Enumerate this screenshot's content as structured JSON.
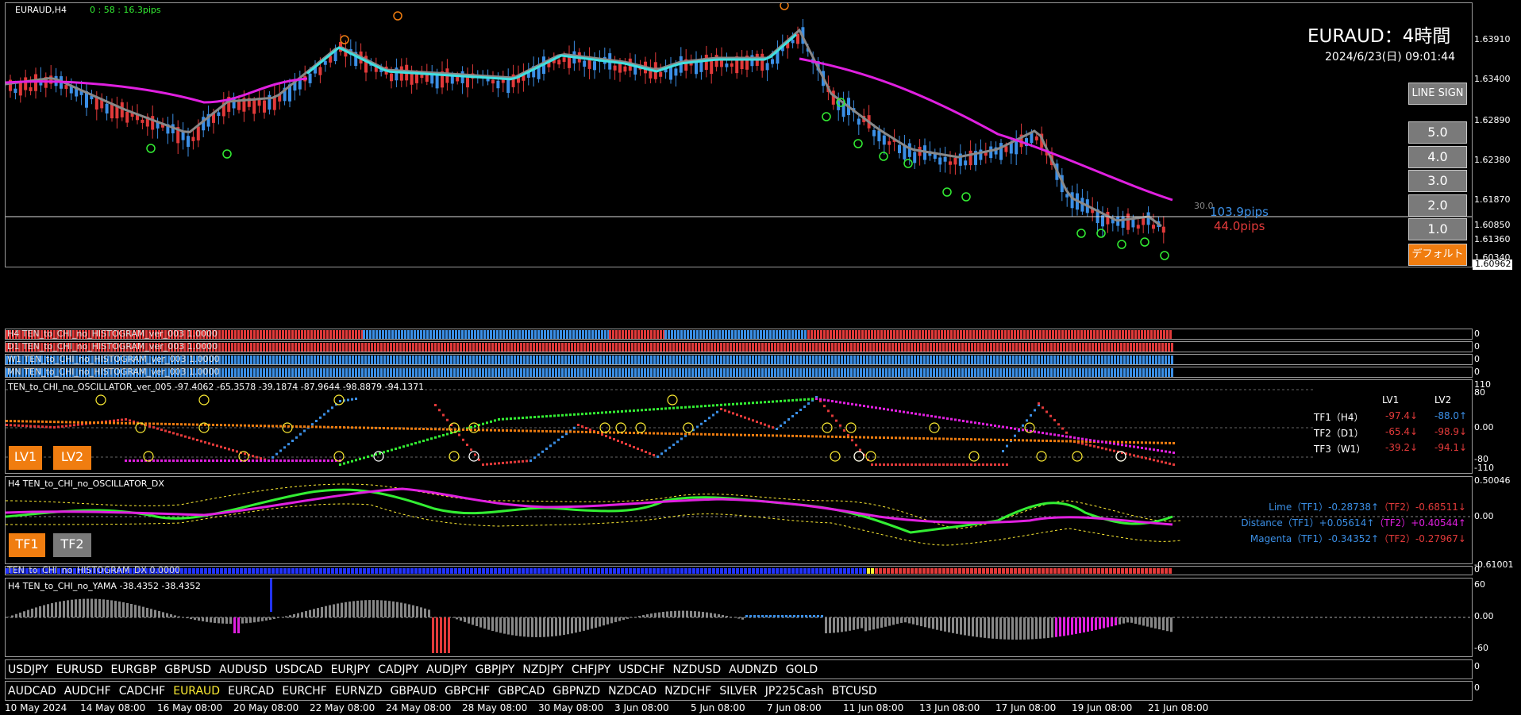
{
  "colors": {
    "bull": "#3b8fe6",
    "bear": "#e23a3a",
    "magenta": "#e020e0",
    "cyan": "#40e0e0",
    "orange": "#f07d10",
    "lime": "#33ee33",
    "yellow": "#ffee33"
  },
  "main": {
    "symbol_label": "EURAUD,H4",
    "timer": "0 : 58 : 16.3pips",
    "title": "EURAUD：4時間",
    "datetime": "2024/6/23(日) 09:01:44",
    "price_current": "1.60962",
    "price_ticks": [
      "1.63910",
      "1.63400",
      "1.62890",
      "1.62380",
      "1.61870",
      "1.61360",
      "1.60850",
      "1.60340"
    ],
    "pips_up": "103.9pips",
    "pips_down": "44.0pips",
    "level_label": "30.0",
    "buttons": {
      "line_sign": "LINE SIGN",
      "b5": "5.0",
      "b4": "4.0",
      "b3": "3.0",
      "b2": "2.0",
      "b1": "1.0",
      "default": "デフォルト"
    }
  },
  "histograms": [
    {
      "label": "H4 TEN_to_CHI_no_HISTOGRAM_ver_003 1.0000",
      "axis": "0"
    },
    {
      "label": "D1 TEN_to_CHI_no_HISTOGRAM_ver_003 1.0000",
      "axis": "0"
    },
    {
      "label": "W1 TEN_to_CHI_no_HISTOGRAM_ver_003 1.0000",
      "axis": "0"
    },
    {
      "label": "MN TEN_to_CHI_no_HISTOGRAM_ver_003 1.0000",
      "axis": "0"
    }
  ],
  "oscillator": {
    "label": "TEN_to_CHI_no_OSCILLATOR_ver_005 -97.4062 -65.3578 -39.1874 -87.9644 -98.8879 -94.1371",
    "axis": [
      "110",
      "80",
      "0.00",
      "-80",
      "-110"
    ],
    "buttons": {
      "lv1": "LV1",
      "lv2": "LV2"
    },
    "table": {
      "head": [
        "LV1",
        "LV2"
      ],
      "rows": [
        {
          "name": "TF1（H4）",
          "lv1": "-97.4↓",
          "lv2": "-88.0↑"
        },
        {
          "name": "TF2（D1）",
          "lv1": "-65.4↓",
          "lv2": "-98.9↓"
        },
        {
          "name": "TF3（W1）",
          "lv1": "-39.2↓",
          "lv2": "-94.1↓"
        }
      ]
    }
  },
  "dx": {
    "label": "H4 TEN_to_CHI_no_OSCILLATOR_DX",
    "axis": [
      "0.50046",
      "0.00",
      "-0.61001"
    ],
    "buttons": {
      "tf1": "TF1",
      "tf2": "TF2"
    },
    "lines": [
      {
        "a": "Lime（TF1）-0.28738↑",
        "b": "（TF2）-0.68511↓"
      },
      {
        "a": "Distance（TF1）+0.05614↑",
        "b": "（TF2）+0.40544↑"
      },
      {
        "a": "Magenta（TF1）-0.34352↑",
        "b": "（TF2）-0.27967↓"
      }
    ]
  },
  "hist_dx": {
    "label": "TEN_to_CHI_no_HISTOGRAM_DX 0.0000",
    "axis": "0"
  },
  "yama": {
    "label": "H4  TEN_to_CHI_no_YAMA -38.4352 -38.4352",
    "axis": [
      "60",
      "0.00",
      "-60"
    ]
  },
  "symbols_row1": [
    "USDJPY",
    "EURUSD",
    "EURGBP",
    "GBPUSD",
    "AUDUSD",
    "USDCAD",
    "EURJPY",
    "CADJPY",
    "AUDJPY",
    "GBPJPY",
    "NZDJPY",
    "CHFJPY",
    "USDCHF",
    "NZDUSD",
    "AUDNZD",
    "GOLD"
  ],
  "symbols_row2": [
    "AUDCAD",
    "AUDCHF",
    "CADCHF",
    "EURAUD",
    "EURCAD",
    "EURCHF",
    "EURNZD",
    "GBPAUD",
    "GBPCHF",
    "GBPCAD",
    "GBPNZD",
    "NZDCAD",
    "NZDCHF",
    "SILVER",
    "JP225Cash",
    "BTCUSD"
  ],
  "active_symbol": "EURAUD",
  "dates": [
    "10 May 2024",
    "14 May 08:00",
    "16 May 08:00",
    "20 May 08:00",
    "22 May 08:00",
    "24 May 08:00",
    "28 May 08:00",
    "30 May 08:00",
    "3 Jun 08:00",
    "5 Jun 08:00",
    "7 Jun 08:00",
    "11 Jun 08:00",
    "13 Jun 08:00",
    "17 Jun 08:00",
    "19 Jun 08:00",
    "21 Jun 08:00"
  ]
}
